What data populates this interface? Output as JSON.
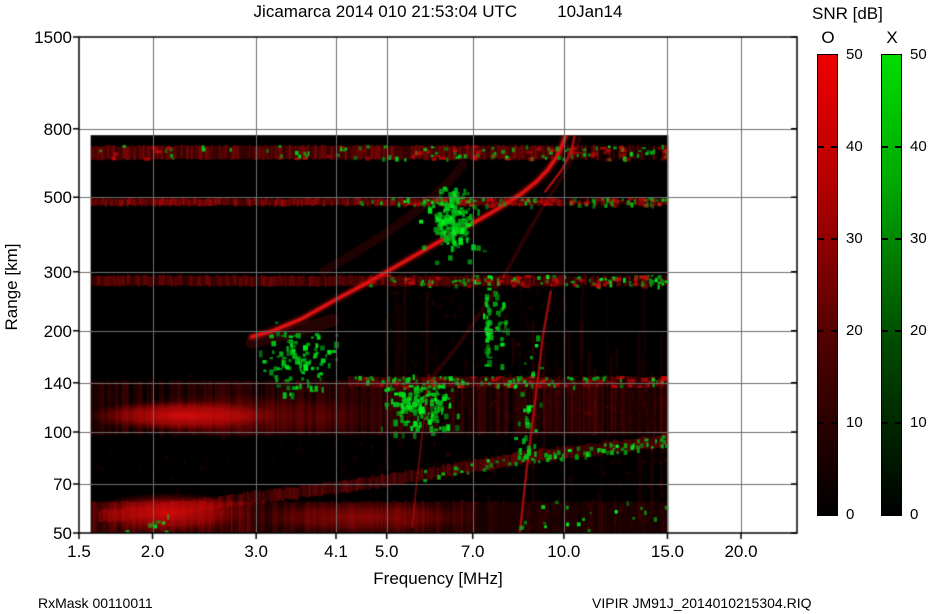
{
  "header": {
    "title_left": "Jicamarca 2014 010 21:53:04 UTC",
    "title_right": "10Jan14"
  },
  "footer": {
    "left": "RxMask 00110011",
    "right": "VIPIR  JM91J_2014010215304.RIQ"
  },
  "colorbar_panel": {
    "title": "SNR [dB]",
    "o_label": "O",
    "x_label": "X",
    "tick_labels": [
      "50",
      "40",
      "30",
      "20",
      "10",
      "0"
    ],
    "tick_values": [
      50,
      40,
      30,
      20,
      10,
      0
    ],
    "o_gradient": [
      "#ee0000",
      "#b40000",
      "#500000",
      "#000000"
    ],
    "x_gradient": [
      "#00dd00",
      "#00a800",
      "#004c00",
      "#000000"
    ],
    "gradient_stops": [
      0,
      0.28,
      0.62,
      1
    ]
  },
  "chart_data": {
    "type": "heatmap",
    "title": "Jicamarca 2014 010 21:53:04 UTC 10Jan14",
    "xlabel": "Frequency [MHz]",
    "ylabel": "Range [km]",
    "x_scale": "log",
    "y_scale": "log",
    "x_range": [
      1.5,
      24.9
    ],
    "y_range": [
      50,
      1500
    ],
    "x_ticks": {
      "values": [
        1.5,
        2,
        3,
        4.1,
        5,
        7,
        10,
        15,
        20
      ],
      "labels": [
        "1.5",
        "2.0",
        "3.0",
        "4.1",
        "5.0",
        "7.0",
        "10.0",
        "15.0",
        "20.0"
      ]
    },
    "y_ticks": {
      "values": [
        1500,
        800,
        500,
        300,
        200,
        140,
        100,
        70,
        50
      ],
      "labels": [
        "1500",
        "800",
        "500",
        "300",
        "200",
        "140",
        "100",
        "70",
        "50"
      ]
    },
    "grid": true,
    "snr_range_db": [
      0,
      50
    ],
    "o_mode_color": "#e01010",
    "x_mode_color": "#00be1e",
    "background_color": "#000000",
    "data_extent": {
      "f": [
        1.57,
        15.05
      ],
      "r": [
        50,
        765
      ]
    },
    "features": {
      "hbands": [
        {
          "f": [
            1.57,
            15.05
          ],
          "r": [
            648,
            712
          ],
          "alpha": 0.62,
          "dashy": true,
          "gn": 90,
          "gf": [
            1.6,
            15.0
          ]
        },
        {
          "f": [
            1.57,
            15.05
          ],
          "r": [
            472,
            496
          ],
          "alpha": 0.8,
          "dashy": true,
          "gn": 70,
          "gf": [
            4.5,
            15.0
          ]
        },
        {
          "f": [
            1.57,
            15.05
          ],
          "r": [
            272,
            292
          ],
          "alpha": 0.55,
          "dashy": true,
          "gn": 80,
          "gf": [
            4.4,
            15.0
          ]
        },
        {
          "f": [
            4.3,
            15.05
          ],
          "r": [
            136,
            146
          ],
          "alpha": 0.45,
          "dashy": true,
          "gn": 70,
          "gf": [
            4.3,
            15.0
          ]
        },
        {
          "f": [
            1.57,
            15.05
          ],
          "r": [
            98,
            142
          ],
          "alpha": 0.3,
          "gappy": true,
          "gn": 0,
          "gf": [
            5.0,
            7.0
          ]
        },
        {
          "f": [
            1.57,
            15.05
          ],
          "r": [
            50,
            62
          ],
          "alpha": 0.5,
          "fade_right": true,
          "gn": 20,
          "gf": [
            8.0,
            15.0
          ]
        }
      ],
      "tilted_band": {
        "pts": [
          [
            1.62,
            56
          ],
          [
            3,
            64
          ],
          [
            5,
            72
          ],
          [
            7,
            79
          ],
          [
            9,
            85
          ],
          [
            12,
            90
          ],
          [
            15.05,
            95
          ]
        ],
        "alpha": 0.5,
        "gn": 80,
        "gf": [
          5.5,
          15.0
        ]
      },
      "blobs": [
        {
          "mode": "O",
          "f": [
            1.55,
            3.3
          ],
          "r": [
            101,
            124
          ],
          "alpha": 0.95
        },
        {
          "mode": "O",
          "f": [
            1.55,
            5.0
          ],
          "r": [
            95,
            130
          ],
          "alpha": 0.4
        },
        {
          "mode": "O",
          "f": [
            1.55,
            2.95
          ],
          "r": [
            50,
            66
          ],
          "alpha": 0.9
        },
        {
          "mode": "O",
          "f": [
            2.9,
            7.2
          ],
          "r": [
            50,
            62
          ],
          "alpha": 0.5
        }
      ],
      "traces": [
        {
          "mode": "O",
          "pts": [
            [
              2.95,
              192
            ],
            [
              3.2,
              200
            ],
            [
              3.6,
              218
            ],
            [
              4.1,
              248
            ],
            [
              4.6,
              276
            ],
            [
              5.0,
              300
            ],
            [
              5.5,
              330
            ],
            [
              6.0,
              360
            ],
            [
              6.5,
              390
            ],
            [
              7.0,
              418
            ],
            [
              7.5,
              448
            ],
            [
              8.0,
              480
            ],
            [
              8.5,
              515
            ],
            [
              9.0,
              558
            ],
            [
              9.4,
              605
            ],
            [
              9.7,
              655
            ],
            [
              9.9,
              705
            ],
            [
              10.05,
              755
            ],
            [
              10.12,
              792
            ]
          ],
          "w": 3,
          "a": 0.95,
          "glow": true
        },
        {
          "mode": "O",
          "pts": [
            [
              9.3,
              520
            ],
            [
              9.9,
              600
            ],
            [
              10.2,
              660
            ],
            [
              10.35,
              710
            ],
            [
              10.42,
              758
            ]
          ],
          "w": 2.5,
          "a": 0.7
        },
        {
          "mode": "O",
          "pts": [
            [
              2.95,
              185
            ],
            [
              3.5,
              200
            ],
            [
              4.05,
              215
            ]
          ],
          "w": 13,
          "a": 0.16
        },
        {
          "mode": "O",
          "pts": [
            [
              3.9,
              300
            ],
            [
              4.5,
              348
            ],
            [
              5.0,
              392
            ],
            [
              5.5,
              442
            ],
            [
              6.0,
              502
            ],
            [
              6.4,
              558
            ],
            [
              6.75,
              625
            ]
          ],
          "w": 9,
          "a": 0.13
        },
        {
          "mode": "O",
          "pts": [
            [
              5.9,
              142
            ],
            [
              6.6,
              180
            ],
            [
              7.2,
              225
            ],
            [
              7.9,
              290
            ],
            [
              8.6,
              380
            ],
            [
              9.3,
              480
            ],
            [
              9.9,
              570
            ],
            [
              10.35,
              660
            ],
            [
              10.65,
              750
            ]
          ],
          "w": 4,
          "a": 0.18
        },
        {
          "mode": "O",
          "pts": [
            [
              9.5,
              262
            ],
            [
              9.2,
              190
            ],
            [
              9.05,
              147
            ],
            [
              8.85,
              108
            ],
            [
              8.65,
              78
            ],
            [
              8.42,
              50
            ]
          ],
          "w": 2.5,
          "a": 0.65
        },
        {
          "mode": "O",
          "pts": [
            [
              5.9,
              148
            ],
            [
              5.75,
              100
            ],
            [
              5.62,
              70
            ],
            [
              5.52,
              52
            ]
          ],
          "w": 2,
          "a": 0.4
        }
      ],
      "green_clusters": [
        {
          "f": [
            2.95,
            4.15
          ],
          "r": [
            125,
            215
          ],
          "n": 110
        },
        {
          "f": [
            4.85,
            6.7
          ],
          "r": [
            96,
            152
          ],
          "n": 170
        },
        {
          "f": [
            5.85,
            7.05
          ],
          "r": [
            360,
            540
          ],
          "n": 150
        },
        {
          "f": [
            5.6,
            7.6
          ],
          "r": [
            300,
            560
          ],
          "n": 45
        },
        {
          "f": [
            7.2,
            8.1
          ],
          "r": [
            140,
            310
          ],
          "n": 70,
          "columns": true
        },
        {
          "f": [
            8.1,
            9.3
          ],
          "r": [
            55,
            210
          ],
          "n": 35
        },
        {
          "f": [
            1.62,
            2.3
          ],
          "r": [
            50,
            58
          ],
          "n": 8
        }
      ],
      "red_streaks": {
        "n": 30,
        "f": [
          4.8,
          15.0
        ],
        "r": [
          50,
          300
        ]
      },
      "red_noise": [
        {
          "n": 700,
          "f": [
            1.57,
            15.0
          ],
          "r": [
            50,
            150
          ],
          "amax": 0.1
        },
        {
          "n": 300,
          "f": [
            5.0,
            10.0
          ],
          "r": [
            150,
            300
          ],
          "amax": 0.08
        }
      ]
    }
  }
}
